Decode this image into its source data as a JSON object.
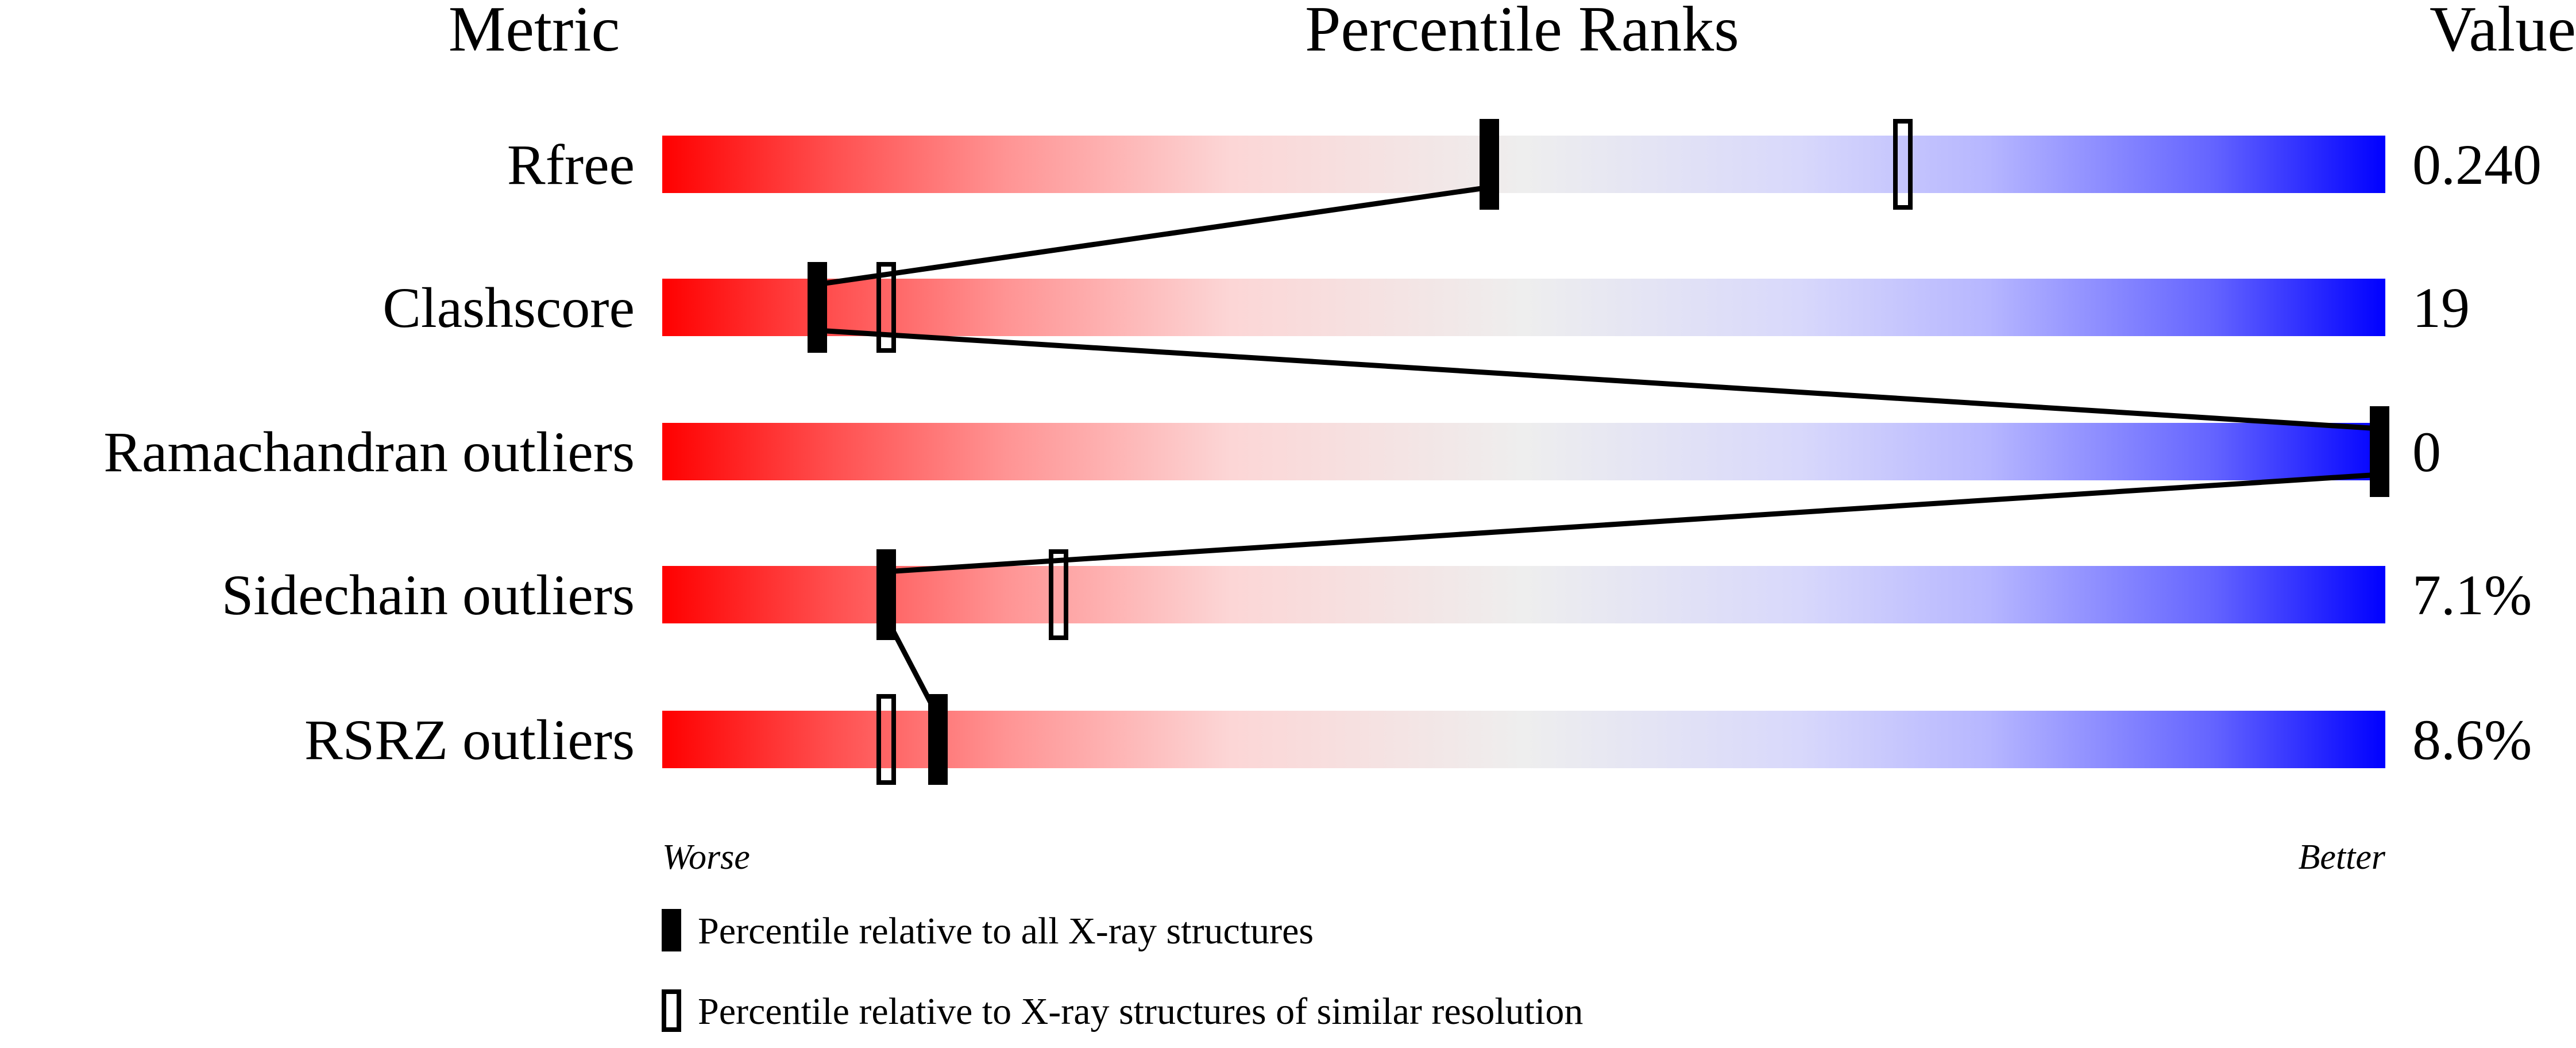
{
  "chart_data": {
    "type": "percentile-slider",
    "headers": {
      "metric": "Metric",
      "ranks": "Percentile Ranks",
      "value": "Value"
    },
    "xlim": [
      0,
      100
    ],
    "axis_words": {
      "left": "Worse",
      "right": "Better"
    },
    "gradient_colors": {
      "worse": "#ff0000",
      "middle": "#eeeeee",
      "better": "#0000ff"
    },
    "rows": [
      {
        "metric": "Rfree",
        "value": "0.240",
        "percentile_all": 48,
        "percentile_similar": 72
      },
      {
        "metric": "Clashscore",
        "value": "19",
        "percentile_all": 9,
        "percentile_similar": 13
      },
      {
        "metric": "Ramachandran outliers",
        "value": "0",
        "percentile_all": 100,
        "percentile_similar": null
      },
      {
        "metric": "Sidechain outliers",
        "value": "7.1%",
        "percentile_all": 13,
        "percentile_similar": 23
      },
      {
        "metric": "RSRZ outliers",
        "value": "8.6%",
        "percentile_all": 16,
        "percentile_similar": 13
      }
    ],
    "legend": [
      {
        "marker": "filled",
        "label": "Percentile relative to all X-ray structures"
      },
      {
        "marker": "open",
        "label": "Percentile relative to X-ray structures of similar resolution"
      }
    ]
  }
}
